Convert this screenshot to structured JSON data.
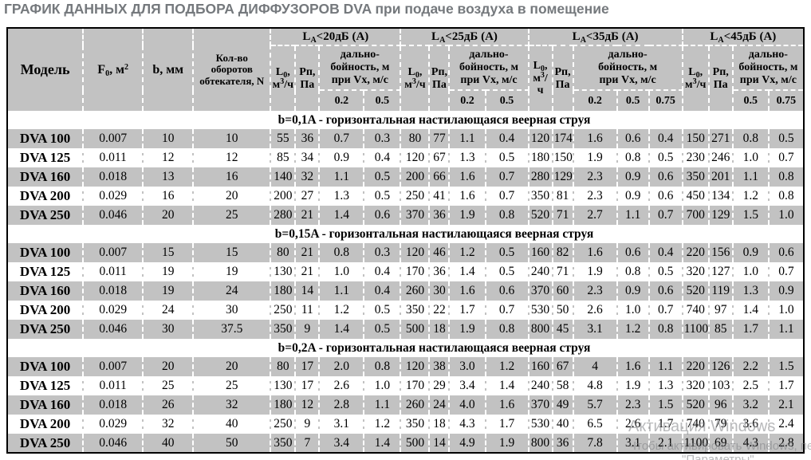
{
  "page_title": "ГРАФИК ДАННЫХ ДЛЯ ПОДБОРА ДИФФУЗОРОВ DVA при подаче воздуха в помещение",
  "watermark": {
    "line1": "Активация Windows",
    "line2": "Чтобы активировать Windows, перейдите в раздел",
    "line3": "\"Параметры\"."
  },
  "table": {
    "headers": {
      "model": "Модель",
      "f0": {
        "pre": "F",
        "sub": "0",
        "mid": ", м",
        "sup": "2"
      },
      "b": "b, мм",
      "n": {
        "line1": "Кол-во",
        "line2": "оборотов",
        "line3": "обтекателя, N"
      },
      "groups": [
        {
          "pre": "L",
          "sub": "A",
          "post": "<20дБ (А)"
        },
        {
          "pre": "L",
          "sub": "A",
          "post": "<25дБ (А)"
        },
        {
          "pre": "L",
          "sub": "A",
          "post": "<35дБ (А)"
        },
        {
          "pre": "L",
          "sub": "A",
          "post": "<45дБ (А)"
        }
      ],
      "l0": {
        "pre": "L",
        "sub": "0",
        "mid": ", м",
        "sup": "3",
        "post": "/ч"
      },
      "rp": "Рп, Па",
      "range": {
        "line1": "дально-",
        "line2": "бойность, м",
        "line3": "при Vx, м/с"
      },
      "vx": [
        [
          "0.2",
          "0.5"
        ],
        [
          "0.2",
          "0.5"
        ],
        [
          "0.2",
          "0.5",
          "0.75"
        ],
        [
          "0.5",
          "0.75"
        ]
      ]
    },
    "sections": [
      {
        "title": "b=0,1A  - горизонтальная настилающаяся веерная струя",
        "rows": [
          [
            "DVA 100",
            "0.007",
            "10",
            "10",
            "55",
            "36",
            "0.7",
            "0.3",
            "80",
            "77",
            "1.1",
            "0.4",
            "120",
            "174",
            "1.6",
            "0.6",
            "0.4",
            "150",
            "271",
            "0.8",
            "0.5"
          ],
          [
            "DVA 125",
            "0.011",
            "12",
            "12",
            "85",
            "34",
            "0.9",
            "0.4",
            "120",
            "67",
            "1.3",
            "0.5",
            "180",
            "150",
            "1.9",
            "0.8",
            "0.5",
            "230",
            "246",
            "1.0",
            "0.7"
          ],
          [
            "DVA 160",
            "0.018",
            "13",
            "16",
            "140",
            "32",
            "1.1",
            "0.5",
            "200",
            "66",
            "1.6",
            "0.7",
            "280",
            "129",
            "2.3",
            "0.9",
            "0.6",
            "350",
            "201",
            "1.1",
            "0.8"
          ],
          [
            "DVA 200",
            "0.029",
            "16",
            "20",
            "200",
            "27",
            "1.3",
            "0.5",
            "250",
            "41",
            "1.6",
            "0.7",
            "350",
            "81",
            "2.3",
            "0.9",
            "0.6",
            "450",
            "134",
            "1.2",
            "0.8"
          ],
          [
            "DVA 250",
            "0.046",
            "20",
            "25",
            "280",
            "21",
            "1.4",
            "0.6",
            "370",
            "36",
            "1.9",
            "0.8",
            "520",
            "71",
            "2.7",
            "1.1",
            "0.7",
            "700",
            "129",
            "1.5",
            "1.0"
          ]
        ]
      },
      {
        "title": "b=0,15A  - горизонтальная настилающаяся веерная струя",
        "rows": [
          [
            "DVA 100",
            "0.007",
            "15",
            "15",
            "80",
            "21",
            "0.8",
            "0.3",
            "120",
            "46",
            "1.2",
            "0.5",
            "160",
            "82",
            "1.6",
            "0.6",
            "0.4",
            "220",
            "156",
            "0.9",
            "0.6"
          ],
          [
            "DVA 125",
            "0.011",
            "19",
            "19",
            "130",
            "21",
            "1.0",
            "0.4",
            "170",
            "36",
            "1.4",
            "0.5",
            "240",
            "71",
            "1.9",
            "0.8",
            "0.5",
            "320",
            "127",
            "1.0",
            "0.7"
          ],
          [
            "DVA 160",
            "0.018",
            "19",
            "24",
            "180",
            "14",
            "1.1",
            "0.4",
            "260",
            "30",
            "1.6",
            "0.6",
            "370",
            "60",
            "2.3",
            "0.9",
            "0.6",
            "520",
            "119",
            "1.3",
            "0.9"
          ],
          [
            "DVA 200",
            "0.029",
            "24",
            "30",
            "250",
            "11",
            "1.2",
            "0.5",
            "350",
            "22",
            "1.7",
            "0.7",
            "530",
            "50",
            "2.6",
            "1.0",
            "0.7",
            "740",
            "97",
            "1.4",
            "1.0"
          ],
          [
            "DVA 250",
            "0.046",
            "30",
            "37.5",
            "350",
            "9",
            "1.4",
            "0.5",
            "500",
            "18",
            "1.9",
            "0.8",
            "800",
            "45",
            "3.1",
            "1.2",
            "0.8",
            "1100",
            "85",
            "1.7",
            "1.1"
          ]
        ]
      },
      {
        "title": "b=0,2A  - горизонтальная настилающаяся веерная струя",
        "rows": [
          [
            "DVA 100",
            "0.007",
            "20",
            "20",
            "80",
            "17",
            "2.0",
            "0.8",
            "120",
            "38",
            "3.0",
            "1.2",
            "160",
            "67",
            "4",
            "1.6",
            "1.1",
            "220",
            "126",
            "2.2",
            "1.5"
          ],
          [
            "DVA 125",
            "0.011",
            "25",
            "25",
            "130",
            "17",
            "2.6",
            "1.0",
            "170",
            "29",
            "3.4",
            "1.4",
            "240",
            "58",
            "4.8",
            "1.9",
            "1.3",
            "320",
            "103",
            "2.5",
            "1.7"
          ],
          [
            "DVA 160",
            "0.018",
            "26",
            "32",
            "180",
            "12",
            "2.8",
            "1.1",
            "260",
            "24",
            "4.0",
            "1.6",
            "370",
            "49",
            "5.7",
            "2.3",
            "1.5",
            "520",
            "96",
            "3.2",
            "2.1"
          ],
          [
            "DVA 200",
            "0.029",
            "32",
            "40",
            "250",
            "9",
            "3.1",
            "1.2",
            "350",
            "18",
            "4.3",
            "1.7",
            "530",
            "40",
            "6.5",
            "2.6",
            "1.7",
            "740",
            "79",
            "3.6",
            "2.4"
          ],
          [
            "DVA 250",
            "0.046",
            "40",
            "50",
            "350",
            "7",
            "3.4",
            "1.4",
            "500",
            "14",
            "4.9",
            "1.9",
            "800",
            "36",
            "7.8",
            "3.1",
            "2.1",
            "1100",
            "69",
            "4.3",
            "2.8"
          ]
        ]
      }
    ]
  }
}
